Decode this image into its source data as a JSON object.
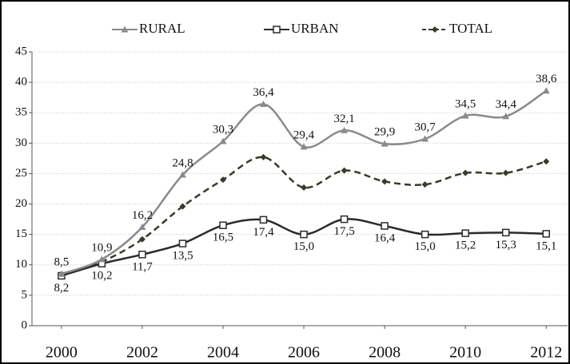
{
  "chart_data": {
    "type": "line",
    "x": [
      2000,
      2001,
      2002,
      2003,
      2004,
      2005,
      2006,
      2007,
      2008,
      2009,
      2010,
      2011,
      2012
    ],
    "series": [
      {
        "name": "RURAL",
        "color": "#8a8a8a",
        "marker": "triangle",
        "dashed": false,
        "label_side": "above",
        "values": [
          8.5,
          10.9,
          16.2,
          24.8,
          30.3,
          36.4,
          29.4,
          32.1,
          29.9,
          30.7,
          34.5,
          34.4,
          38.6
        ],
        "value_labels": [
          "8,5",
          "10,9",
          "16,2",
          "24,8",
          "30,3",
          "36,4",
          "29,4",
          "32,1",
          "29,9",
          "30,7",
          "34,5",
          "34,4",
          "38,6"
        ]
      },
      {
        "name": "URBAN",
        "color": "#2b2b2b",
        "marker": "square",
        "dashed": false,
        "label_side": "below",
        "values": [
          8.2,
          10.2,
          11.7,
          13.5,
          16.5,
          17.4,
          15.0,
          17.5,
          16.4,
          15.0,
          15.2,
          15.3,
          15.1
        ],
        "value_labels": [
          "8,2",
          "10,2",
          "11,7",
          "13,5",
          "16,5",
          "17,4",
          "15,0",
          "17,5",
          "16,4",
          "15,0",
          "15,2",
          "15,3",
          "15,1"
        ]
      },
      {
        "name": "TOTAL",
        "color": "#3a3a28",
        "marker": "diamond",
        "dashed": true,
        "values": [
          8.3,
          10.5,
          14.2,
          19.6,
          24.0,
          27.7,
          22.7,
          25.5,
          23.7,
          23.2,
          25.1,
          25.1,
          27.0
        ]
      }
    ],
    "xlim": [
      1999.27,
      2012.53
    ],
    "xticks": [
      2000,
      2002,
      2004,
      2006,
      2008,
      2010,
      2012
    ],
    "ylim": [
      0,
      45
    ],
    "yticks": [
      0,
      5,
      10,
      15,
      20,
      25,
      30,
      35,
      40,
      45
    ],
    "grid": true
  }
}
